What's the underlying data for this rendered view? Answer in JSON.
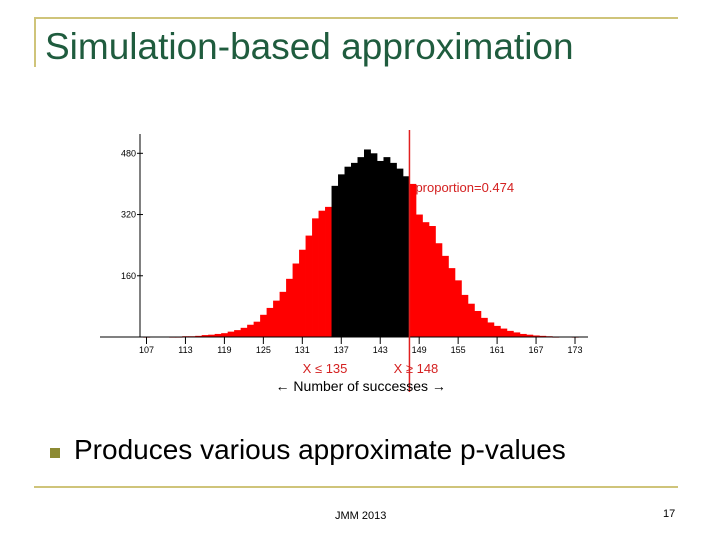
{
  "slide": {
    "title": "Simulation-based approximation",
    "bullet": "Produces various approximate p-values",
    "footer_center": "JMM 2013",
    "page_number": "17"
  },
  "chart_data": {
    "type": "bar",
    "x_ticks": [
      107,
      113,
      119,
      125,
      131,
      137,
      143,
      149,
      155,
      161,
      167,
      173
    ],
    "y_ticks": [
      480,
      320,
      160
    ],
    "y_tick_labels": [
      "480",
      "320",
      "160"
    ],
    "ylim": [
      0,
      520
    ],
    "xlim": [
      106,
      175
    ],
    "xlabel": "← Number of successes →",
    "annotation": "proportion=0.474",
    "left_tail_label": "X ≤ 135",
    "right_tail_label": "X ≥ 148",
    "cutoff_line_x": 148,
    "series": [
      {
        "x": [
          107,
          108,
          109,
          110,
          111,
          112,
          113,
          114,
          115,
          116,
          117,
          118,
          119,
          120,
          121,
          122,
          123,
          124,
          125,
          126,
          127,
          128,
          129,
          130,
          131,
          132,
          133,
          134,
          135,
          136,
          137,
          138,
          139,
          140,
          141,
          142,
          143,
          144,
          145,
          146,
          147,
          148,
          149,
          150,
          151,
          152,
          153,
          154,
          155,
          156,
          157,
          158,
          159,
          160,
          161,
          162,
          163,
          164,
          165,
          166,
          167,
          168,
          169,
          170,
          171,
          172,
          173
        ],
        "values": [
          1,
          0,
          0,
          0,
          1,
          1,
          2,
          2,
          3,
          5,
          6,
          8,
          10,
          14,
          18,
          24,
          32,
          40,
          58,
          76,
          95,
          118,
          152,
          192,
          228,
          265,
          310,
          330,
          340,
          395,
          425,
          445,
          455,
          470,
          490,
          480,
          460,
          470,
          455,
          440,
          420,
          400,
          320,
          300,
          290,
          245,
          212,
          180,
          148,
          110,
          87,
          68,
          50,
          38,
          29,
          22,
          16,
          12,
          8,
          6,
          4,
          3,
          2,
          1,
          0,
          0,
          1
        ],
        "colors": {
          "tail": "#ff0000",
          "middle": "#000000"
        }
      }
    ],
    "colors": {
      "annotation": "#d42020",
      "cutoff_line": "#e02020",
      "axis": "#000000"
    }
  }
}
